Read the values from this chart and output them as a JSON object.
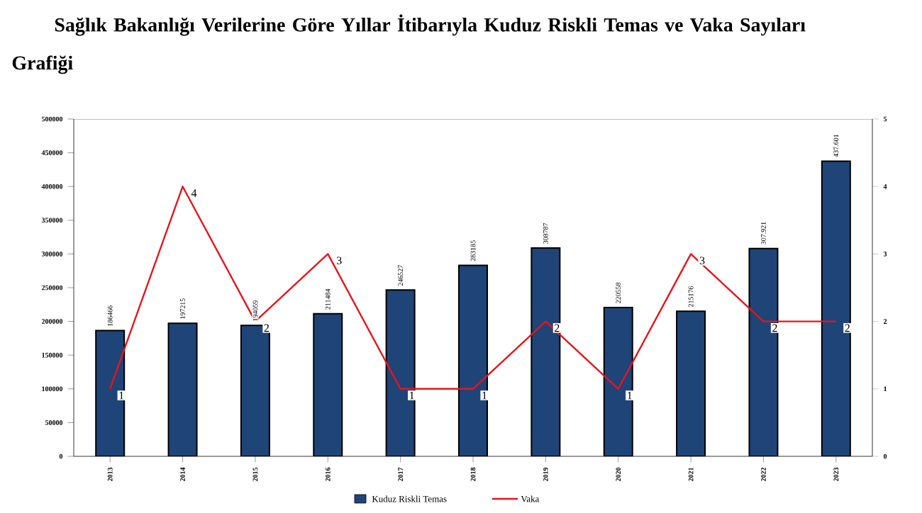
{
  "chart_data": {
    "type": "bar",
    "title": "Sağlık Bakanlığı Verilerine Göre Yıllar İtibarıyla Kuduz Riskli Temas ve Vaka Sayıları Grafiği",
    "categories": [
      "2013",
      "2014",
      "2015",
      "2016",
      "2017",
      "2018",
      "2019",
      "2020",
      "2021",
      "2022",
      "2023"
    ],
    "series": [
      {
        "name": "Kuduz Riskli Temas",
        "color": "#1f4478",
        "values": [
          186466,
          197215,
          194059,
          211484,
          246527,
          283185,
          308787,
          220558,
          215176,
          307921,
          437601
        ],
        "value_labels": [
          "186466",
          "197215",
          "194059",
          "211484",
          "246527",
          "283185",
          "308787",
          "220558",
          "215176",
          "307.921",
          "437.601"
        ]
      },
      {
        "name": "Vaka",
        "type": "line",
        "axis": "y2",
        "color": "#e8141b",
        "values": [
          1,
          4,
          2,
          3,
          1,
          1,
          2,
          1,
          3,
          2,
          2
        ],
        "value_labels": [
          "1",
          "4",
          "2",
          "3",
          "1",
          "1",
          "2",
          "1",
          "3",
          "2",
          "2"
        ]
      }
    ],
    "ylim": [
      0,
      500000
    ],
    "yticks": [
      0,
      50000,
      100000,
      150000,
      200000,
      250000,
      300000,
      350000,
      400000,
      450000,
      500000
    ],
    "y2lim": [
      0,
      5
    ],
    "y2ticks": [
      0,
      1,
      2,
      3,
      4,
      5
    ],
    "legend": "bottom",
    "grid": false,
    "marker": "none",
    "line_style": "solid"
  }
}
